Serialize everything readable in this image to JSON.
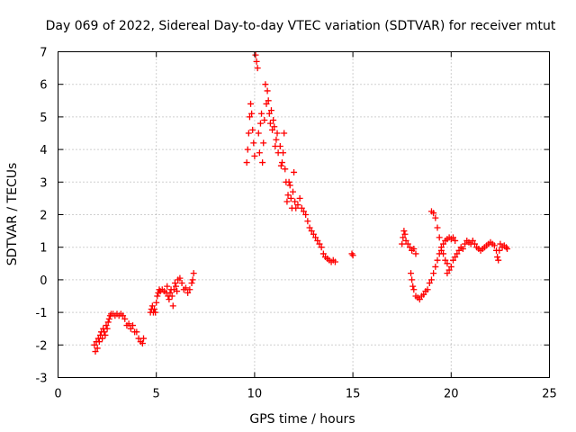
{
  "chart_data": {
    "type": "scatter",
    "title": "Day 069 of 2022, Sidereal Day-to-day VTEC variation (SDTVAR) for receiver mtut",
    "xlabel": "GPS time / hours",
    "ylabel": "SDTVAR / TECUs",
    "xlim": [
      0,
      25
    ],
    "ylim": [
      -3,
      7
    ],
    "xticks": [
      0,
      5,
      10,
      15,
      20,
      25
    ],
    "yticks": [
      -3,
      -2,
      -1,
      0,
      1,
      2,
      3,
      4,
      5,
      6,
      7
    ],
    "grid": true,
    "marker": "+",
    "color": "#ff0000",
    "series": [
      {
        "name": "SDTVAR",
        "points": [
          [
            1.85,
            -2.0
          ],
          [
            1.9,
            -2.2
          ],
          [
            1.95,
            -1.9
          ],
          [
            2.0,
            -2.1
          ],
          [
            2.05,
            -1.8
          ],
          [
            2.1,
            -1.9
          ],
          [
            2.15,
            -1.7
          ],
          [
            2.2,
            -1.6
          ],
          [
            2.25,
            -1.8
          ],
          [
            2.3,
            -1.5
          ],
          [
            2.35,
            -1.6
          ],
          [
            2.4,
            -1.7
          ],
          [
            2.45,
            -1.4
          ],
          [
            2.5,
            -1.5
          ],
          [
            2.55,
            -1.3
          ],
          [
            2.6,
            -1.2
          ],
          [
            2.65,
            -1.1
          ],
          [
            2.7,
            -1.05
          ],
          [
            2.8,
            -1.05
          ],
          [
            2.9,
            -1.1
          ],
          [
            3.0,
            -1.05
          ],
          [
            3.1,
            -1.1
          ],
          [
            3.2,
            -1.05
          ],
          [
            3.3,
            -1.1
          ],
          [
            3.4,
            -1.2
          ],
          [
            3.5,
            -1.4
          ],
          [
            3.6,
            -1.35
          ],
          [
            3.7,
            -1.5
          ],
          [
            3.8,
            -1.4
          ],
          [
            3.9,
            -1.6
          ],
          [
            4.0,
            -1.6
          ],
          [
            4.1,
            -1.8
          ],
          [
            4.2,
            -1.9
          ],
          [
            4.3,
            -1.95
          ],
          [
            4.35,
            -1.8
          ],
          [
            4.7,
            -1.0
          ],
          [
            4.75,
            -0.9
          ],
          [
            4.8,
            -0.8
          ],
          [
            4.85,
            -1.0
          ],
          [
            4.9,
            -0.9
          ],
          [
            4.95,
            -1.0
          ],
          [
            5.0,
            -0.7
          ],
          [
            5.05,
            -0.5
          ],
          [
            5.1,
            -0.4
          ],
          [
            5.15,
            -0.3
          ],
          [
            5.2,
            -0.35
          ],
          [
            5.3,
            -0.3
          ],
          [
            5.4,
            -0.35
          ],
          [
            5.5,
            -0.4
          ],
          [
            5.55,
            -0.2
          ],
          [
            5.6,
            -0.5
          ],
          [
            5.65,
            -0.6
          ],
          [
            5.7,
            -0.4
          ],
          [
            5.75,
            -0.3
          ],
          [
            5.8,
            -0.5
          ],
          [
            5.85,
            -0.8
          ],
          [
            5.9,
            -0.3
          ],
          [
            5.95,
            -0.1
          ],
          [
            6.0,
            -0.2
          ],
          [
            6.05,
            -0.35
          ],
          [
            6.1,
            0.0
          ],
          [
            6.2,
            0.05
          ],
          [
            6.3,
            -0.1
          ],
          [
            6.4,
            -0.3
          ],
          [
            6.5,
            -0.25
          ],
          [
            6.6,
            -0.4
          ],
          [
            6.7,
            -0.3
          ],
          [
            6.8,
            -0.1
          ],
          [
            6.85,
            0.0
          ],
          [
            6.9,
            0.2
          ],
          [
            9.6,
            3.6
          ],
          [
            9.65,
            4.0
          ],
          [
            9.7,
            4.5
          ],
          [
            9.75,
            5.0
          ],
          [
            9.8,
            5.4
          ],
          [
            9.85,
            5.1
          ],
          [
            9.9,
            4.6
          ],
          [
            9.95,
            4.2
          ],
          [
            10.0,
            3.8
          ],
          [
            10.05,
            6.9
          ],
          [
            10.1,
            6.7
          ],
          [
            10.15,
            6.5
          ],
          [
            10.2,
            4.5
          ],
          [
            10.25,
            3.9
          ],
          [
            10.3,
            4.8
          ],
          [
            10.35,
            5.1
          ],
          [
            10.4,
            3.6
          ],
          [
            10.45,
            4.2
          ],
          [
            10.5,
            4.9
          ],
          [
            10.55,
            6.0
          ],
          [
            10.6,
            5.4
          ],
          [
            10.65,
            5.8
          ],
          [
            10.7,
            5.5
          ],
          [
            10.75,
            5.1
          ],
          [
            10.8,
            4.8
          ],
          [
            10.85,
            5.2
          ],
          [
            10.9,
            4.6
          ],
          [
            10.95,
            4.9
          ],
          [
            11.0,
            4.7
          ],
          [
            11.05,
            4.1
          ],
          [
            11.1,
            4.3
          ],
          [
            11.15,
            4.5
          ],
          [
            11.2,
            3.9
          ],
          [
            11.3,
            4.1
          ],
          [
            11.35,
            3.5
          ],
          [
            11.4,
            3.6
          ],
          [
            11.45,
            3.9
          ],
          [
            11.5,
            4.5
          ],
          [
            11.55,
            3.4
          ],
          [
            11.6,
            3.0
          ],
          [
            11.65,
            2.4
          ],
          [
            11.7,
            2.6
          ],
          [
            11.75,
            3.0
          ],
          [
            11.8,
            2.9
          ],
          [
            11.85,
            2.5
          ],
          [
            11.9,
            2.2
          ],
          [
            11.95,
            2.7
          ],
          [
            12.0,
            3.3
          ],
          [
            12.05,
            2.4
          ],
          [
            12.1,
            2.2
          ],
          [
            12.2,
            2.3
          ],
          [
            12.3,
            2.5
          ],
          [
            12.4,
            2.2
          ],
          [
            12.5,
            2.1
          ],
          [
            12.6,
            2.0
          ],
          [
            12.7,
            1.8
          ],
          [
            12.8,
            1.6
          ],
          [
            12.9,
            1.5
          ],
          [
            13.0,
            1.4
          ],
          [
            13.1,
            1.3
          ],
          [
            13.2,
            1.2
          ],
          [
            13.3,
            1.1
          ],
          [
            13.4,
            1.0
          ],
          [
            13.5,
            0.8
          ],
          [
            13.6,
            0.7
          ],
          [
            13.7,
            0.65
          ],
          [
            13.8,
            0.6
          ],
          [
            13.9,
            0.55
          ],
          [
            14.0,
            0.6
          ],
          [
            14.1,
            0.55
          ],
          [
            14.95,
            0.8
          ],
          [
            15.0,
            0.75
          ],
          [
            17.5,
            1.1
          ],
          [
            17.55,
            1.3
          ],
          [
            17.6,
            1.5
          ],
          [
            17.65,
            1.4
          ],
          [
            17.7,
            1.2
          ],
          [
            17.8,
            1.1
          ],
          [
            17.9,
            1.0
          ],
          [
            18.0,
            0.9
          ],
          [
            18.1,
            0.95
          ],
          [
            18.2,
            0.8
          ],
          [
            17.95,
            0.2
          ],
          [
            18.0,
            0.0
          ],
          [
            18.05,
            -0.2
          ],
          [
            18.1,
            -0.3
          ],
          [
            18.2,
            -0.5
          ],
          [
            18.3,
            -0.55
          ],
          [
            18.4,
            -0.6
          ],
          [
            18.5,
            -0.5
          ],
          [
            18.6,
            -0.45
          ],
          [
            18.7,
            -0.35
          ],
          [
            18.8,
            -0.3
          ],
          [
            18.9,
            -0.1
          ],
          [
            19.0,
            2.1
          ],
          [
            19.1,
            2.05
          ],
          [
            19.2,
            1.9
          ],
          [
            19.3,
            1.6
          ],
          [
            19.4,
            1.3
          ],
          [
            19.5,
            1.0
          ],
          [
            19.6,
            0.8
          ],
          [
            19.7,
            0.6
          ],
          [
            19.8,
            0.5
          ],
          [
            19.0,
            0.0
          ],
          [
            19.1,
            0.2
          ],
          [
            19.2,
            0.4
          ],
          [
            19.3,
            0.6
          ],
          [
            19.4,
            0.8
          ],
          [
            19.5,
            0.9
          ],
          [
            19.6,
            1.1
          ],
          [
            19.7,
            1.2
          ],
          [
            19.8,
            1.25
          ],
          [
            19.9,
            1.3
          ],
          [
            20.0,
            1.25
          ],
          [
            20.1,
            1.3
          ],
          [
            20.2,
            1.2
          ],
          [
            19.8,
            0.2
          ],
          [
            19.9,
            0.3
          ],
          [
            20.0,
            0.4
          ],
          [
            20.1,
            0.6
          ],
          [
            20.2,
            0.7
          ],
          [
            20.3,
            0.8
          ],
          [
            20.4,
            0.9
          ],
          [
            20.5,
            1.0
          ],
          [
            20.6,
            0.95
          ],
          [
            20.7,
            1.1
          ],
          [
            20.8,
            1.2
          ],
          [
            20.9,
            1.15
          ],
          [
            21.0,
            1.1
          ],
          [
            21.1,
            1.2
          ],
          [
            21.2,
            1.1
          ],
          [
            21.3,
            1.0
          ],
          [
            21.4,
            0.95
          ],
          [
            21.5,
            0.9
          ],
          [
            21.6,
            0.95
          ],
          [
            21.7,
            1.0
          ],
          [
            21.8,
            1.05
          ],
          [
            21.9,
            1.1
          ],
          [
            22.0,
            1.15
          ],
          [
            22.1,
            1.1
          ],
          [
            22.2,
            1.05
          ],
          [
            22.3,
            0.9
          ],
          [
            22.35,
            0.7
          ],
          [
            22.4,
            0.6
          ],
          [
            22.45,
            0.9
          ],
          [
            22.5,
            1.1
          ],
          [
            22.6,
            1.0
          ],
          [
            22.7,
            1.05
          ],
          [
            22.8,
            1.0
          ],
          [
            22.85,
            0.95
          ]
        ]
      }
    ]
  }
}
